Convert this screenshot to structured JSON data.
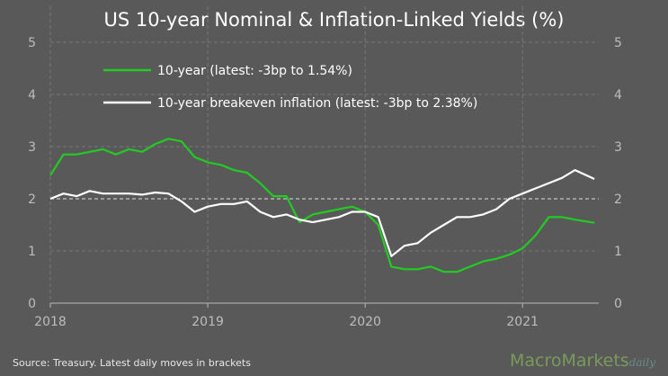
{
  "chart_data": {
    "type": "line",
    "title": "US 10-year Nominal & Inflation-Linked  Yields (%)",
    "xlabel": "",
    "ylabel": "",
    "xlim": [
      2018,
      2021.45
    ],
    "ylim": [
      0,
      5
    ],
    "x_ticks": [
      "2018",
      "2019",
      "2020",
      "2021"
    ],
    "y_ticks": [
      "0",
      "1",
      "2",
      "3",
      "4",
      "5"
    ],
    "grid": true,
    "legend_position": "top-left",
    "series": [
      {
        "name": "10-year (latest: -3bp to 1.54%)",
        "color": "#22cc22",
        "values": [
          2.45,
          2.85,
          2.85,
          2.9,
          2.95,
          2.85,
          2.95,
          2.9,
          3.05,
          3.15,
          3.1,
          2.8,
          2.7,
          2.65,
          2.55,
          2.5,
          2.3,
          2.05,
          2.05,
          1.55,
          1.7,
          1.75,
          1.8,
          1.85,
          1.75,
          1.5,
          0.7,
          0.65,
          0.65,
          0.7,
          0.6,
          0.6,
          0.7,
          0.8,
          0.85,
          0.93,
          1.05,
          1.3,
          1.65,
          1.65,
          1.6,
          1.54
        ]
      },
      {
        "name": "10-year breakeven inflation (latest: -3bp to 2.38%)",
        "color": "#ffffff",
        "values": [
          2.0,
          2.1,
          2.05,
          2.15,
          2.1,
          2.1,
          2.1,
          2.08,
          2.12,
          2.1,
          1.95,
          1.75,
          1.85,
          1.9,
          1.9,
          1.95,
          1.75,
          1.65,
          1.7,
          1.6,
          1.55,
          1.6,
          1.65,
          1.75,
          1.75,
          1.65,
          0.9,
          1.1,
          1.15,
          1.35,
          1.5,
          1.65,
          1.65,
          1.7,
          1.8,
          2.0,
          2.1,
          2.2,
          2.3,
          2.4,
          2.55,
          2.38
        ]
      }
    ],
    "x_start": 2018,
    "x_step_months": 1
  },
  "source": "Source:  Treasury.  Latest daily moves in brackets",
  "logo": {
    "main": "MacroMarkets",
    "sub": "daily"
  }
}
